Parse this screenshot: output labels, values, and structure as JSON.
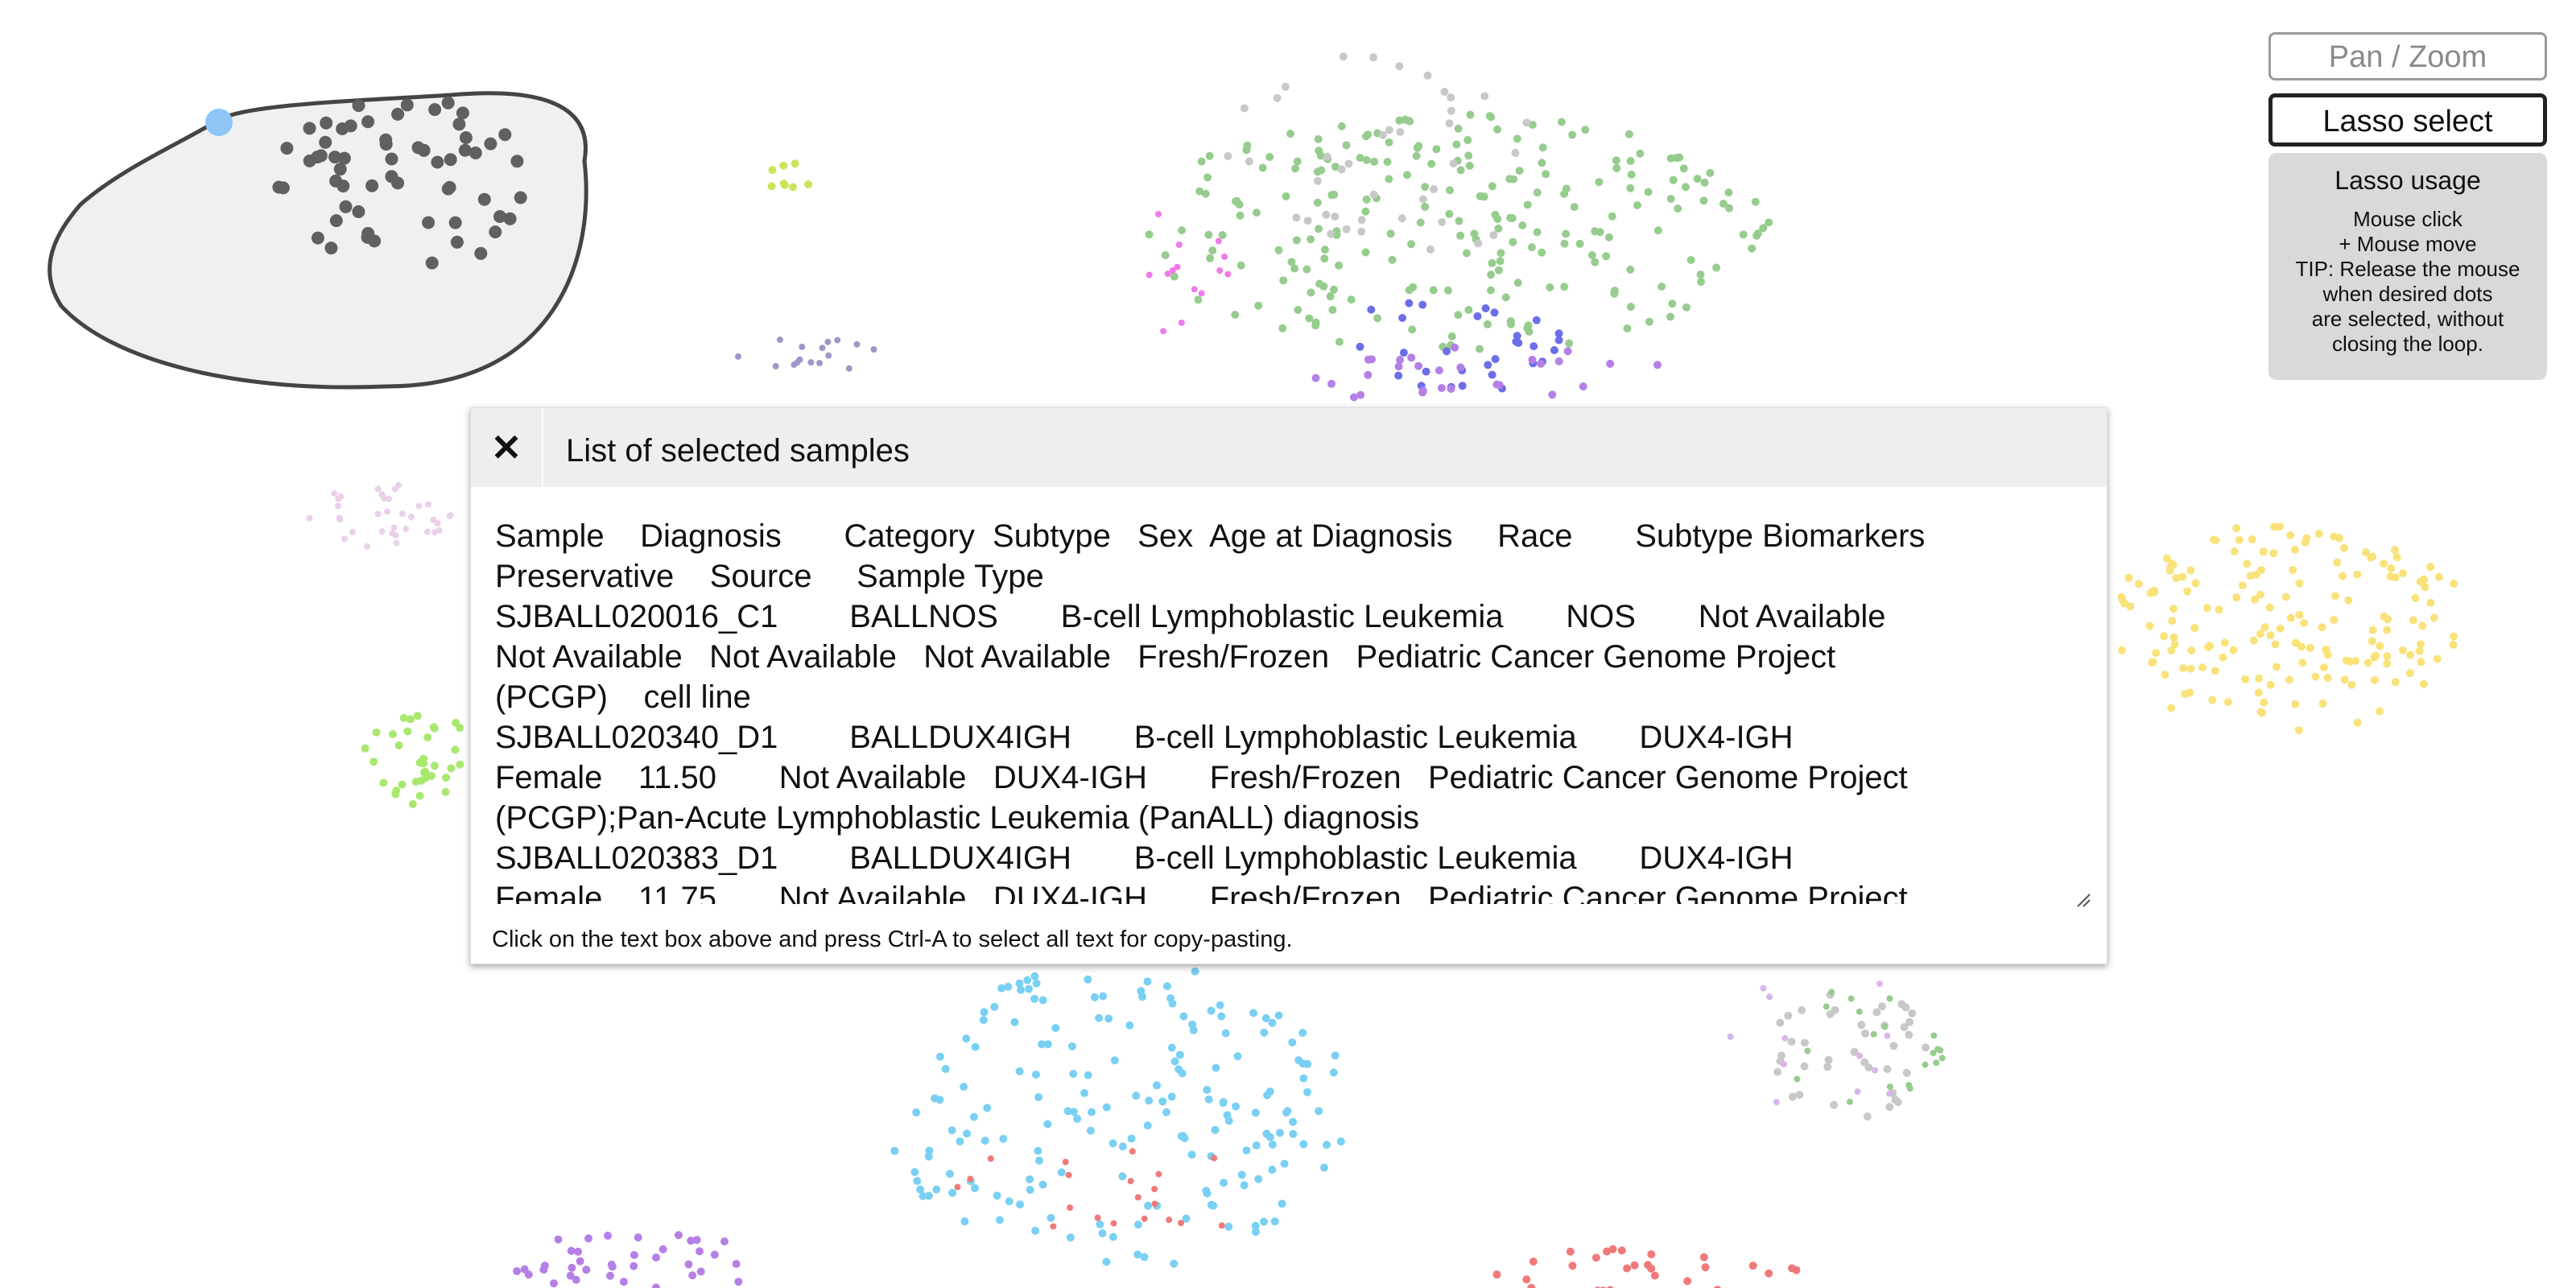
{
  "toolbar": {
    "pan_zoom_label": "Pan / Zoom",
    "lasso_select_label": "Lasso select"
  },
  "lasso_usage": {
    "title": "Lasso usage",
    "lines": [
      "Mouse click",
      "+ Mouse move",
      "TIP: Release the mouse",
      "when desired dots",
      "are selected, without",
      "closing the loop."
    ]
  },
  "modal": {
    "close_icon": "✕",
    "title": "List of selected samples",
    "text": "Sample    Diagnosis       Category  Subtype   Sex  Age at Diagnosis     Race       Subtype Biomarkers\nPreservative    Source     Sample Type\nSJBALL020016_C1        BALLNOS       B-cell Lymphoblastic Leukemia       NOS       Not Available\nNot Available   Not Available   Not Available   Fresh/Frozen   Pediatric Cancer Genome Project\n(PCGP)    cell line\nSJBALL020340_D1        BALLDUX4IGH       B-cell Lymphoblastic Leukemia       DUX4-IGH\nFemale    11.50       Not Available   DUX4-IGH       Fresh/Frozen   Pediatric Cancer Genome Project\n(PCGP);Pan-Acute Lymphoblastic Leukemia (PanALL) diagnosis\nSJBALL020383_D1        BALLDUX4IGH       B-cell Lymphoblastic Leukemia       DUX4-IGH\nFemale    11.75       Not Available   DUX4-IGH       Fresh/Frozen   Pediatric Cancer Genome Project",
    "hint": "Click on the text box above and press Ctrl-A to select all text for copy-pasting."
  },
  "colors": {
    "selected_dot": "#606060",
    "lasso_fill": "#f0f0f0",
    "lasso_stroke": "#444444",
    "lasso_handle": "#8ec5f5",
    "green": "#96cc8e",
    "light_green": "#a9e86e",
    "lime": "#c8e65a",
    "yellow": "#f9e27a",
    "cyan": "#79d0f2",
    "purple": "#b580e6",
    "lavender": "#d8b6ea",
    "pale_pink": "#ead0ea",
    "blue": "#6c6ee8",
    "magenta": "#f07ae8",
    "grey": "#c8c8c8",
    "orange": "#f5b87a",
    "red": "#f07a7a",
    "slate": "#9d98c8"
  }
}
